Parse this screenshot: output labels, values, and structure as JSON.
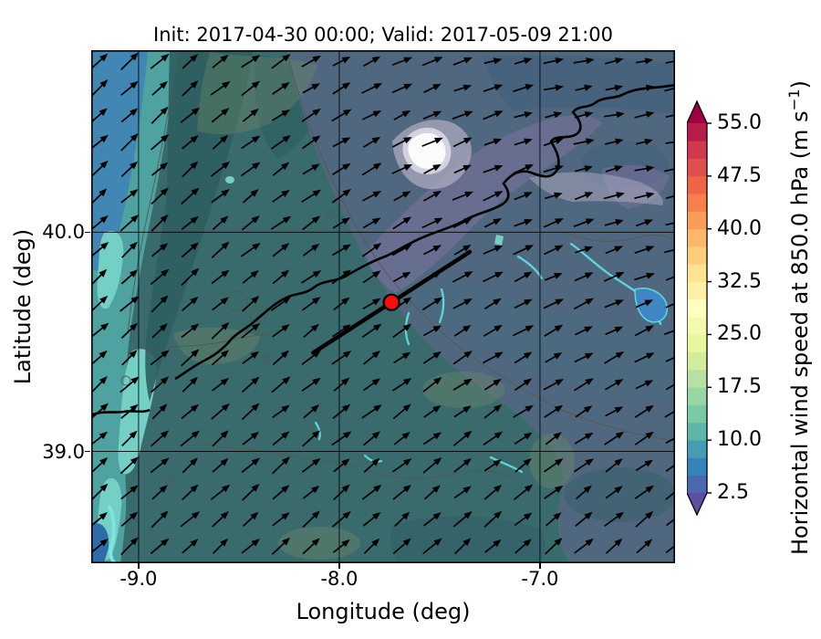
{
  "title": "Init: 2017-04-30 00:00; Valid: 2017-05-09 21:00",
  "axes": {
    "xlabel": "Longitude (deg)",
    "ylabel": "Latitude (deg)",
    "xlim": [
      -9.236,
      -6.327
    ],
    "ylim": [
      38.49,
      40.83
    ],
    "grid": true,
    "x_ticks": [
      {
        "label": "-9.0",
        "lon": -9.0
      },
      {
        "label": "-8.0",
        "lon": -8.0
      },
      {
        "label": "-7.0",
        "lon": -7.0
      }
    ],
    "y_ticks": [
      {
        "label": "40.0",
        "lat": 40.0
      },
      {
        "label": "39.0",
        "lat": 39.0
      }
    ]
  },
  "colorbar": {
    "label_main": "Horizontal wind speed at 850.0 hPa (m s",
    "label_sup": "−1",
    "label_close": ")",
    "colormap": "Spectral_r",
    "vmin": 2.5,
    "vmax": 55.0,
    "band_step": 2.5,
    "ticks": [
      {
        "label": "2.5",
        "value": 2.5
      },
      {
        "label": "10.0",
        "value": 10.0
      },
      {
        "label": "17.5",
        "value": 17.5
      },
      {
        "label": "25.0",
        "value": 25.0
      },
      {
        "label": "32.5",
        "value": 32.5
      },
      {
        "label": "40.0",
        "value": 40.0
      },
      {
        "label": "47.5",
        "value": 47.5
      },
      {
        "label": "55.0",
        "value": 55.0
      }
    ],
    "band_colors_bottom_to_top": [
      "#4a69ae",
      "#3683bb",
      "#459db4",
      "#5db7a9",
      "#79c9a5",
      "#98d6a4",
      "#b6e1a2",
      "#d1ec9c",
      "#e8f69c",
      "#f4faad",
      "#ffffbf",
      "#fef1a7",
      "#fee390",
      "#fece7c",
      "#fdb769",
      "#fb9c59",
      "#f67f4b",
      "#ee6445",
      "#e04f4b",
      "#d0384e",
      "#b71d48"
    ],
    "under_arrow_color": "#5e4fa2",
    "over_arrow_color": "#9e0142"
  },
  "chart_data": {
    "type": "heatmap",
    "description": "Filled-contour map of horizontal wind speed at 850.0 hPa over western Iberia (central Portugal), with terrain hillshading, a grid of black wind arrows pointing northeastward, a thick meandering terrain/border contour, a straight black cross-section line and a red location marker on it.",
    "init_time": "2017-04-30 00:00",
    "valid_time": "2017-05-09 21:00",
    "level_hPa": 850.0,
    "units": "m s⁻¹",
    "marker": {
      "lon": -7.74,
      "lat": 39.68,
      "color": "#ff0000"
    },
    "cross_section_line": {
      "lon1": -8.13,
      "lat1": 39.45,
      "lon2": -7.35,
      "lat2": 39.91,
      "color": "#000000"
    },
    "wind_arrows": {
      "cols": 20,
      "rows": 19,
      "direction": "northeastward",
      "color": "#000000"
    },
    "regions_approx_speed": [
      {
        "area": "Atlantic offshore band (west edge)",
        "speed_ms": "5-7.5"
      },
      {
        "area": "coastal strip (cyan)",
        "speed_ms": "10-15"
      },
      {
        "area": "interior lowlands (centre and south, dark teal)",
        "speed_ms": "7.5-10"
      },
      {
        "area": "north-eastern highlands (slate/purple hillshade)",
        "speed_ms": "5-10"
      },
      {
        "area": "mountain summit patch (white)",
        "speed_ms": "terrain highlight"
      }
    ]
  },
  "map_colors": {
    "ocean_blue": "#4286b4",
    "coastal_teal": "#4ea2a0",
    "cyan_patch": "#74cfc4",
    "land_dark_teal": "#3a6b6c",
    "inland_dark": "#2d5e61",
    "highland_slate": "#50687f",
    "terrain_purple": "#7d74a0",
    "terrain_light": "#b9b3ca",
    "snow_white": "#ffffff",
    "olive": "#6f8a68",
    "river_cyan": "#5fd8dc",
    "lake_blue": "#3f86c6",
    "marker_red": "#fa0d0b"
  }
}
